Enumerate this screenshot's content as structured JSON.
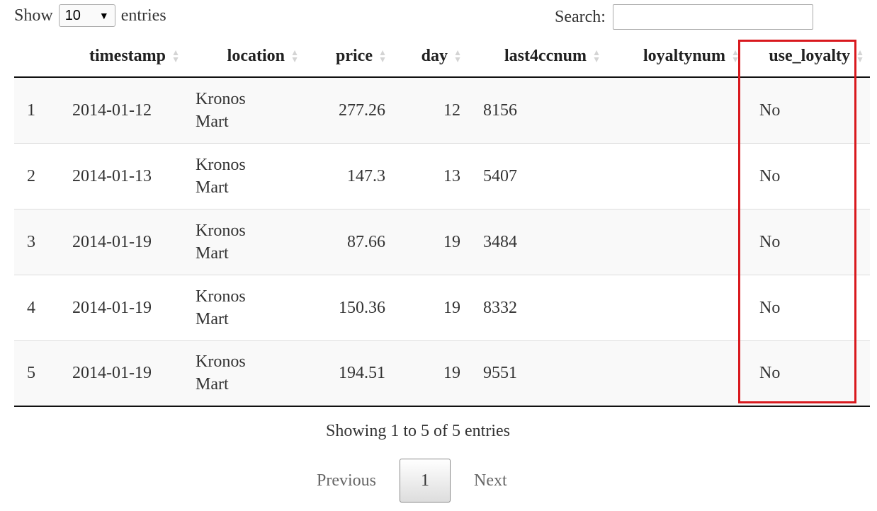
{
  "length_control": {
    "show_label": "Show",
    "selected": "10",
    "entries_label": "entries"
  },
  "search": {
    "label": "Search:",
    "value": "",
    "placeholder": ""
  },
  "table": {
    "columns": [
      "timestamp",
      "location",
      "price",
      "day",
      "last4ccnum",
      "loyaltynum",
      "use_loyalty"
    ],
    "rows": [
      {
        "index": "1",
        "timestamp": "2014-01-12",
        "location_line1": "Kronos",
        "location_line2": "Mart",
        "price": "277.26",
        "day": "12",
        "last4ccnum": "8156",
        "loyaltynum": "",
        "use_loyalty": "No"
      },
      {
        "index": "2",
        "timestamp": "2014-01-13",
        "location_line1": "Kronos",
        "location_line2": "Mart",
        "price": "147.3",
        "day": "13",
        "last4ccnum": "5407",
        "loyaltynum": "",
        "use_loyalty": "No"
      },
      {
        "index": "3",
        "timestamp": "2014-01-19",
        "location_line1": "Kronos",
        "location_line2": "Mart",
        "price": "87.66",
        "day": "19",
        "last4ccnum": "3484",
        "loyaltynum": "",
        "use_loyalty": "No"
      },
      {
        "index": "4",
        "timestamp": "2014-01-19",
        "location_line1": "Kronos",
        "location_line2": "Mart",
        "price": "150.36",
        "day": "19",
        "last4ccnum": "8332",
        "loyaltynum": "",
        "use_loyalty": "No"
      },
      {
        "index": "5",
        "timestamp": "2014-01-19",
        "location_line1": "Kronos",
        "location_line2": "Mart",
        "price": "194.51",
        "day": "19",
        "last4ccnum": "9551",
        "loyaltynum": "",
        "use_loyalty": "No"
      }
    ]
  },
  "info_text": "Showing 1 to 5 of 5 entries",
  "pagination": {
    "previous": "Previous",
    "current": "1",
    "next": "Next"
  },
  "colors": {
    "highlight": "#d9191e",
    "stripe": "#f9f9f9",
    "sort_icon": "#d4d4d4"
  },
  "icons": {
    "select_arrow": "dropdown-arrow-icon",
    "sort": "sort-arrows-icon"
  }
}
